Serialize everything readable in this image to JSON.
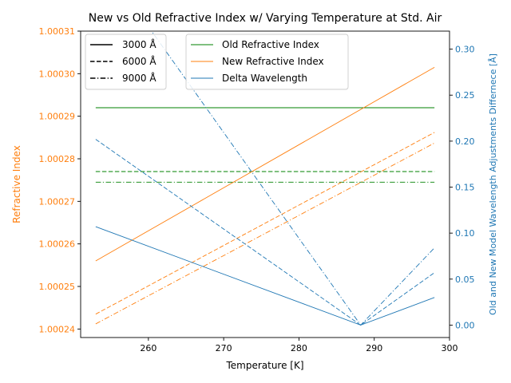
{
  "chart_data": {
    "type": "line",
    "title": "New vs Old Refractive Index w/ Varying Temperature at Std. Air",
    "xlabel": "Temperature [K]",
    "ylabel_left": "Refractive Index",
    "ylabel_right": "Old and New Model Wavelength Adjustments Differnece [Å]",
    "xlim": [
      251,
      300
    ],
    "ylim_left": [
      1.000238,
      1.00031
    ],
    "ylim_right": [
      -0.0135,
      0.3196
    ],
    "x_ticks": [
      260,
      270,
      280,
      290,
      300
    ],
    "x_tick_labels": [
      "260",
      "270",
      "280",
      "290",
      "300"
    ],
    "y_left_ticks": [
      1.00024,
      1.00025,
      1.00026,
      1.00027,
      1.00028,
      1.00029,
      1.0003,
      1.00031
    ],
    "y_left_tick_labels": [
      "1.00024",
      "1.00025",
      "1.00026",
      "1.00027",
      "1.00028",
      "1.00029",
      "1.00030",
      "1.00031"
    ],
    "y_right_ticks": [
      0.0,
      0.05,
      0.1,
      0.15,
      0.2,
      0.25,
      0.3
    ],
    "y_right_tick_labels": [
      "0.00",
      "0.05",
      "0.10",
      "0.15",
      "0.20",
      "0.25",
      "0.30"
    ],
    "grid": false,
    "colors": {
      "old": "#008000",
      "new": "#ff7f0e",
      "delta": "#1f77b4",
      "left_axis": "#ff7f0e",
      "right_axis": "#1f77b4"
    },
    "legend_wavelength": {
      "placement": "upper-left",
      "entries": [
        {
          "label": "3000 Å",
          "dash": "solid"
        },
        {
          "label": "6000 Å",
          "dash": "dashed"
        },
        {
          "label": "9000 Å",
          "dash": "dashdot"
        }
      ]
    },
    "legend_series": {
      "placement": "upper-center",
      "entries": [
        {
          "label": "Old Refractive Index",
          "color": "#008000"
        },
        {
          "label": "New Refractive Index",
          "color": "#ff7f0e"
        },
        {
          "label": "Delta Wavelength",
          "color": "#1f77b4"
        }
      ]
    },
    "series": [
      {
        "kind": "old",
        "wavelength": "3000 Å",
        "axis": "left",
        "dash": "solid",
        "x": [
          253,
          298
        ],
        "y": [
          1.000292,
          1.000292
        ]
      },
      {
        "kind": "old",
        "wavelength": "6000 Å",
        "axis": "left",
        "dash": "dashed",
        "x": [
          253,
          298
        ],
        "y": [
          1.000277,
          1.000277
        ]
      },
      {
        "kind": "old",
        "wavelength": "9000 Å",
        "axis": "left",
        "dash": "dashdot",
        "x": [
          253,
          298
        ],
        "y": [
          1.0002745,
          1.0002745
        ]
      },
      {
        "kind": "new",
        "wavelength": "3000 Å",
        "axis": "left",
        "dash": "solid",
        "x": [
          253,
          298
        ],
        "y": [
          1.000256,
          1.0003015
        ]
      },
      {
        "kind": "new",
        "wavelength": "6000 Å",
        "axis": "left",
        "dash": "dashed",
        "x": [
          253,
          298
        ],
        "y": [
          1.0002435,
          1.0002862
        ]
      },
      {
        "kind": "new",
        "wavelength": "9000 Å",
        "axis": "left",
        "dash": "dashdot",
        "x": [
          253,
          298
        ],
        "y": [
          1.0002412,
          1.0002837
        ]
      },
      {
        "kind": "delta",
        "wavelength": "3000 Å",
        "axis": "right",
        "dash": "solid",
        "x": [
          253,
          288.2,
          298
        ],
        "y": [
          0.107,
          0.0,
          0.03
        ]
      },
      {
        "kind": "delta",
        "wavelength": "6000 Å",
        "axis": "right",
        "dash": "dashed",
        "x": [
          253,
          288.2,
          298
        ],
        "y": [
          0.202,
          0.0,
          0.057
        ]
      },
      {
        "kind": "delta",
        "wavelength": "9000 Å",
        "axis": "right",
        "dash": "dashdot",
        "x": [
          253,
          288.2,
          298
        ],
        "y": [
          0.405,
          0.0,
          0.084
        ]
      }
    ]
  }
}
